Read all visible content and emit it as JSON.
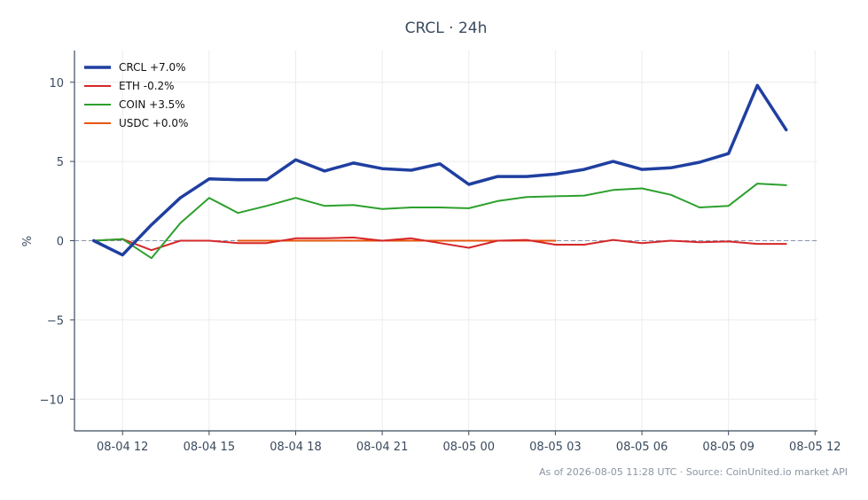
{
  "footer": "As of 2026-08-05 11:28 UTC · Source: CoinUnited.io market API",
  "chart_data": {
    "type": "line",
    "title": "CRCL · 24h",
    "xlabel": "",
    "ylabel": "%",
    "x_range": [
      "08-04 10:20",
      "08-05 12:05"
    ],
    "ylim": [
      -12,
      12
    ],
    "x_ticks": [
      {
        "label": "08-04 12",
        "t": "08-04 12:00"
      },
      {
        "label": "08-04 15",
        "t": "08-04 15:00"
      },
      {
        "label": "08-04 18",
        "t": "08-04 18:00"
      },
      {
        "label": "08-04 21",
        "t": "08-04 21:00"
      },
      {
        "label": "08-05 00",
        "t": "08-05 00:00"
      },
      {
        "label": "08-05 03",
        "t": "08-05 03:00"
      },
      {
        "label": "08-05 06",
        "t": "08-05 06:00"
      },
      {
        "label": "08-05 09",
        "t": "08-05 09:00"
      },
      {
        "label": "08-05 12",
        "t": "08-05 12:00"
      }
    ],
    "y_ticks": [
      {
        "label": "10",
        "v": 10
      },
      {
        "label": "5",
        "v": 5
      },
      {
        "label": "0",
        "v": 0
      },
      {
        "label": "−5",
        "v": -5
      },
      {
        "label": "−10",
        "v": -10
      }
    ],
    "zero_line": true,
    "grid": true,
    "legend_position": "top-left",
    "series": [
      {
        "name": "CRCL +7.0%",
        "color": "#1f3fa0",
        "x": [
          "08-04 11:00",
          "08-04 12:00",
          "08-04 13:00",
          "08-04 14:00",
          "08-04 15:00",
          "08-04 16:00",
          "08-04 17:00",
          "08-04 18:00",
          "08-04 19:00",
          "08-04 20:00",
          "08-04 21:00",
          "08-04 22:00",
          "08-04 23:00",
          "08-05 00:00",
          "08-05 01:00",
          "08-05 02:00",
          "08-05 03:00",
          "08-05 04:00",
          "08-05 05:00",
          "08-05 06:00",
          "08-05 07:00",
          "08-05 08:00",
          "08-05 09:00",
          "08-05 10:00",
          "08-05 11:00"
        ],
        "y": [
          0.0,
          -0.9,
          1.0,
          2.7,
          3.9,
          3.85,
          3.85,
          5.1,
          4.4,
          4.9,
          4.55,
          4.45,
          4.85,
          3.55,
          4.05,
          4.05,
          4.2,
          4.5,
          5.0,
          4.5,
          4.6,
          4.95,
          5.5,
          9.8,
          7.0
        ]
      },
      {
        "name": "ETH -0.2%",
        "color": "#d62728",
        "x": [
          "08-04 11:00",
          "08-04 12:00",
          "08-04 13:00",
          "08-04 14:00",
          "08-04 15:00",
          "08-04 16:00",
          "08-04 17:00",
          "08-04 18:00",
          "08-04 19:00",
          "08-04 20:00",
          "08-04 21:00",
          "08-04 22:00",
          "08-04 23:00",
          "08-05 00:00",
          "08-05 01:00",
          "08-05 02:00",
          "08-05 03:00",
          "08-05 04:00",
          "08-05 05:00",
          "08-05 06:00",
          "08-05 07:00",
          "08-05 08:00",
          "08-05 09:00",
          "08-05 10:00",
          "08-05 11:00"
        ],
        "y": [
          0.0,
          0.1,
          -0.6,
          0.0,
          0.0,
          -0.15,
          -0.15,
          0.15,
          0.15,
          0.2,
          0.0,
          0.15,
          -0.15,
          -0.45,
          0.0,
          0.05,
          -0.25,
          -0.25,
          0.05,
          -0.15,
          0.0,
          -0.1,
          -0.05,
          -0.2,
          -0.2
        ]
      },
      {
        "name": "COIN +3.5%",
        "color": "#2ca02c",
        "x": [
          "08-04 11:00",
          "08-04 12:00",
          "08-04 13:00",
          "08-04 14:00",
          "08-04 15:00",
          "08-04 16:00",
          "08-04 17:00",
          "08-04 18:00",
          "08-04 19:00",
          "08-04 20:00",
          "08-04 21:00",
          "08-04 22:00",
          "08-04 23:00",
          "08-05 00:00",
          "08-05 01:00",
          "08-05 02:00",
          "08-05 03:00",
          "08-05 04:00",
          "08-05 05:00",
          "08-05 06:00",
          "08-05 07:00",
          "08-05 08:00",
          "08-05 09:00",
          "08-05 10:00",
          "08-05 11:00"
        ],
        "y": [
          0.0,
          0.1,
          -1.1,
          1.1,
          2.7,
          1.75,
          2.2,
          2.7,
          2.2,
          2.25,
          2.0,
          2.1,
          2.1,
          2.05,
          2.5,
          2.75,
          2.8,
          2.85,
          3.2,
          3.3,
          2.9,
          2.1,
          2.2,
          3.6,
          3.5
        ]
      },
      {
        "name": "USDC +0.0%",
        "color": "#e6550d",
        "x": [
          "08-04 16:00",
          "08-04 17:00",
          "08-04 18:00",
          "08-04 19:00",
          "08-04 20:00",
          "08-04 21:00",
          "08-04 22:00",
          "08-04 23:00",
          "08-05 00:00",
          "08-05 01:00",
          "08-05 02:00",
          "08-05 03:00"
        ],
        "y": [
          0,
          0,
          0,
          0,
          0,
          0,
          0,
          0,
          0,
          0,
          0,
          0
        ]
      }
    ]
  }
}
